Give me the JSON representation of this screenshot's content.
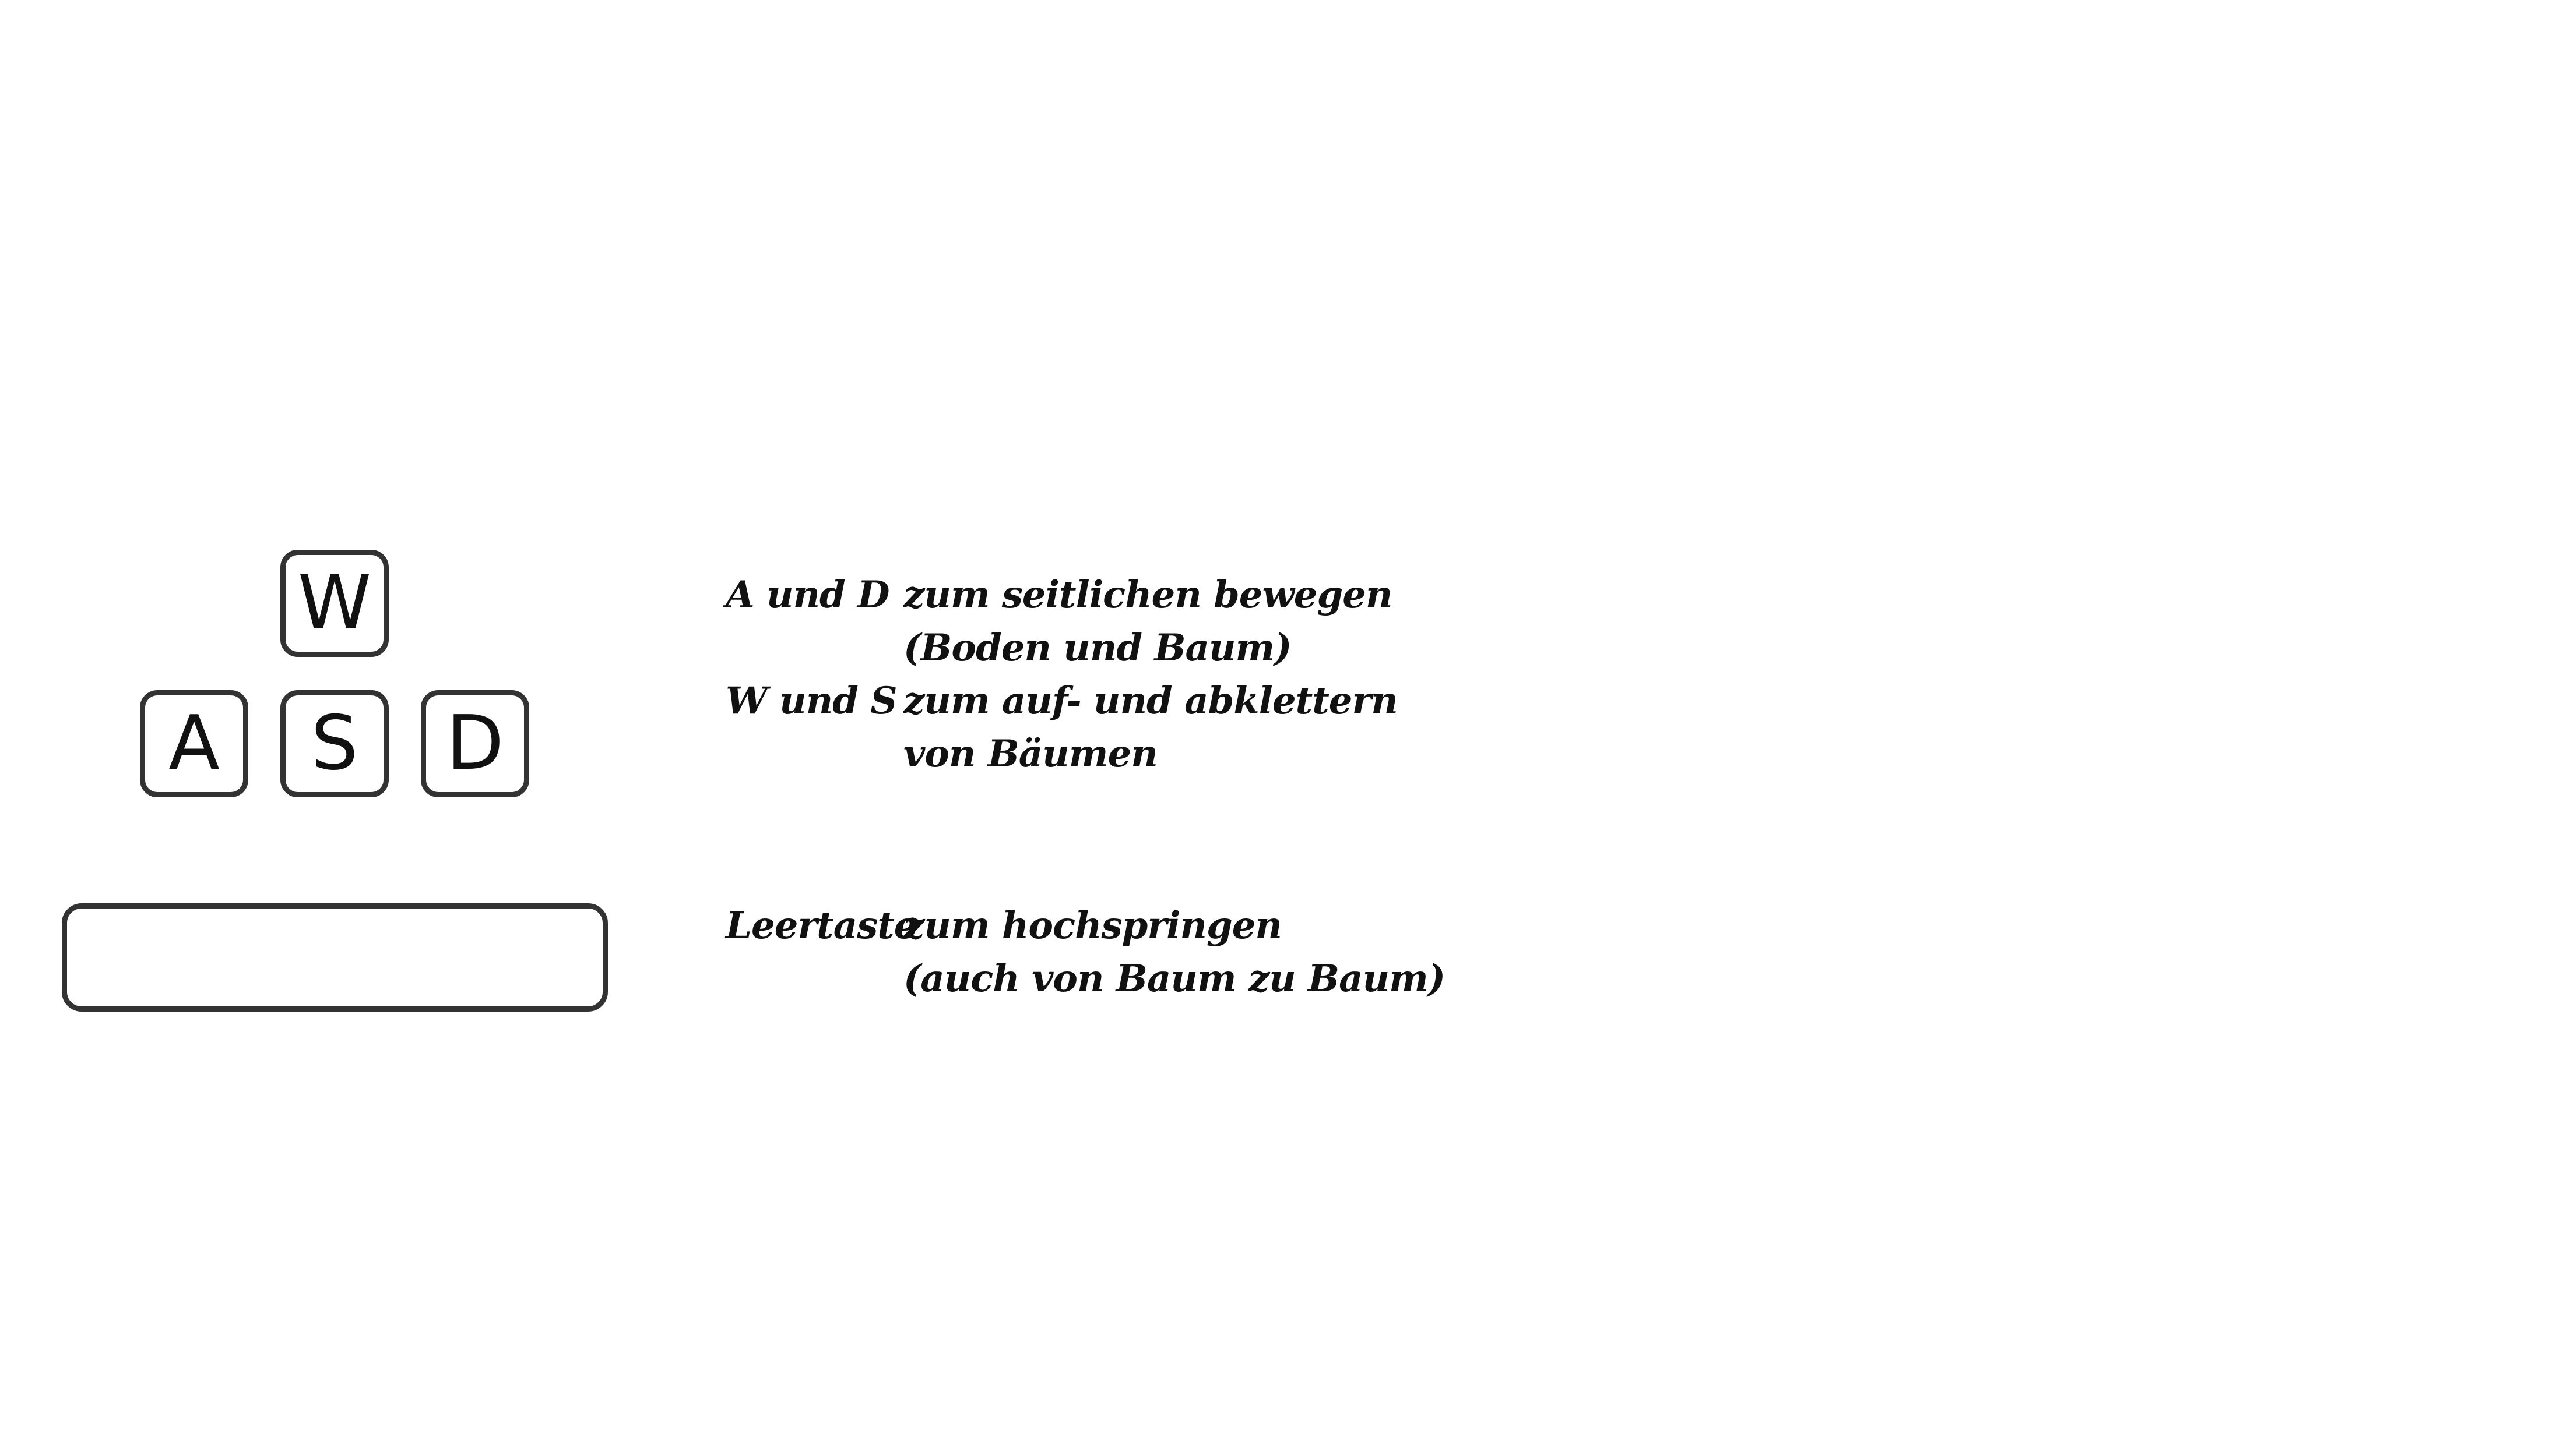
{
  "keys": {
    "w": "W",
    "a": "A",
    "s": "S",
    "d": "D",
    "space": ""
  },
  "controls": [
    {
      "label": "A und D",
      "lines": [
        "zum seitlichen bewegen",
        "(Boden und Baum)"
      ]
    },
    {
      "label": "W und S",
      "lines": [
        "zum auf- und abklettern",
        "von Bäumen"
      ]
    },
    {
      "label": "Leertaste",
      "lines": [
        "zum hochspringen",
        "(auch von Baum zu Baum)"
      ]
    }
  ],
  "colors": {
    "key_border": "#333333",
    "text": "#111111",
    "background": "#ffffff"
  }
}
